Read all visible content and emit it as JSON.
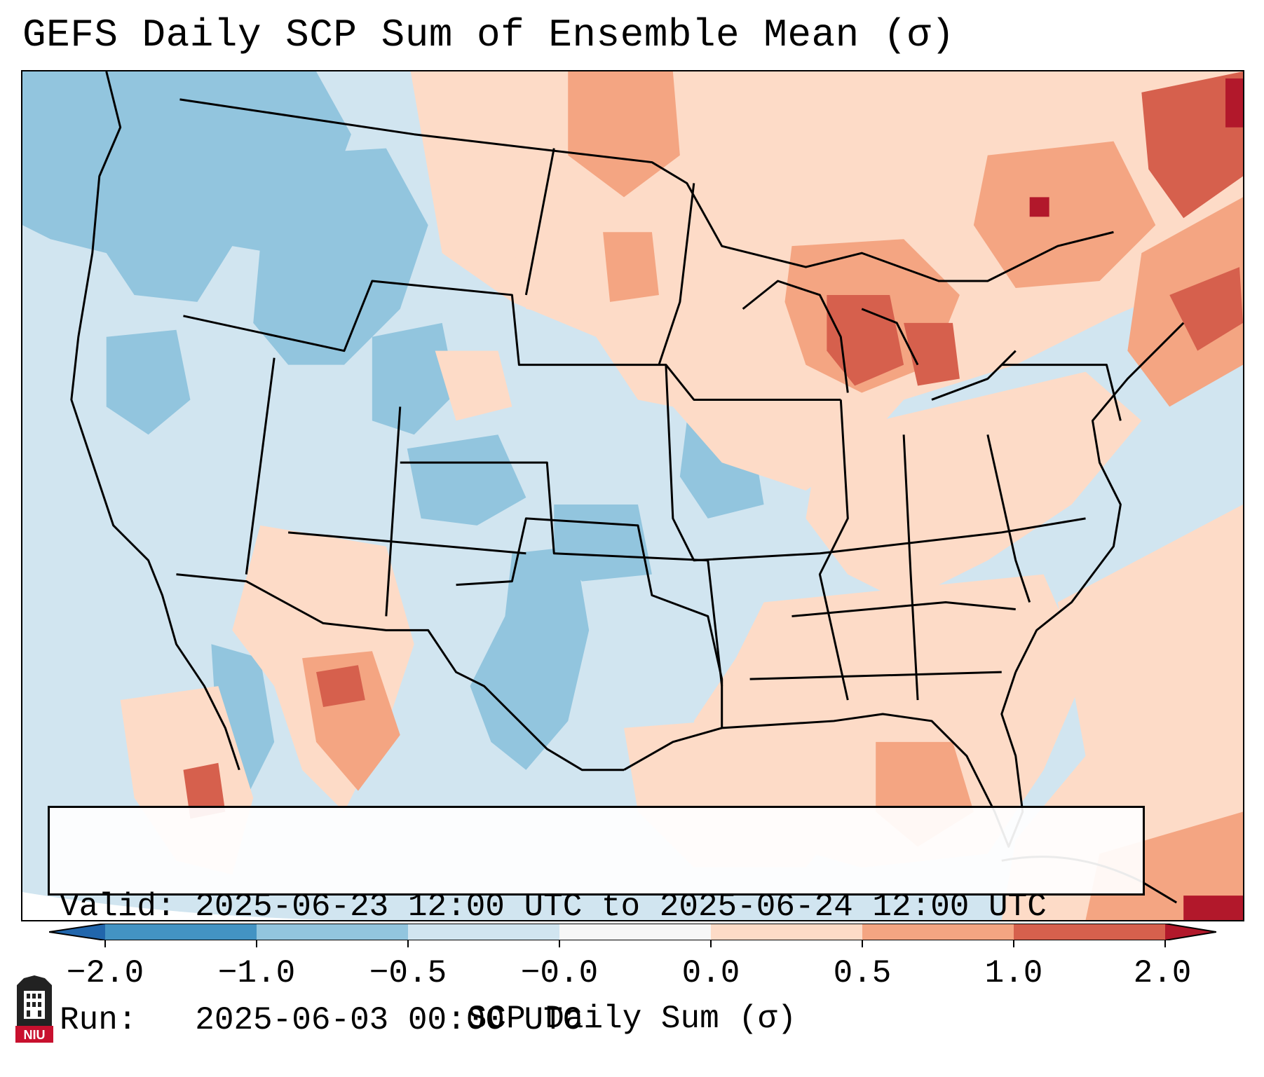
{
  "title": "GEFS Daily SCP Sum of Ensemble Mean (σ)",
  "map": {
    "field": "SCP daily sum standardized anomaly",
    "region": "CONUS",
    "anomaly_colors": {
      "strong_negative": "#4393c3",
      "negative": "#92c5de",
      "weak_negative": "#d1e5f0",
      "weak_positive": "#fddbc7",
      "positive": "#f4a582",
      "strong_positive": "#d6604d",
      "extreme_positive": "#b2182b",
      "near_zero": "#f7f7f7"
    },
    "boundary_color": "#000000"
  },
  "info": {
    "valid_line": "Valid: 2025-06-23 12:00 UTC to 2025-06-24 12:00 UTC",
    "run_line": "Run:   2025-06-03 00:00 UTC"
  },
  "colorbar": {
    "label": "SCP Daily Sum (σ)",
    "ticks": [
      "−2.0",
      "−1.0",
      "−0.5",
      "−0.0",
      "0.0",
      "0.5",
      "1.0",
      "2.0"
    ],
    "segment_colors": [
      "#4393c3",
      "#92c5de",
      "#d1e5f0",
      "#f7f7f7",
      "#fddbc7",
      "#f4a582",
      "#d6604d"
    ],
    "extend_min_color": "#2166ac",
    "extend_max_color": "#b2182b"
  },
  "logo": {
    "text": "NIU",
    "color": "#c8102e"
  }
}
